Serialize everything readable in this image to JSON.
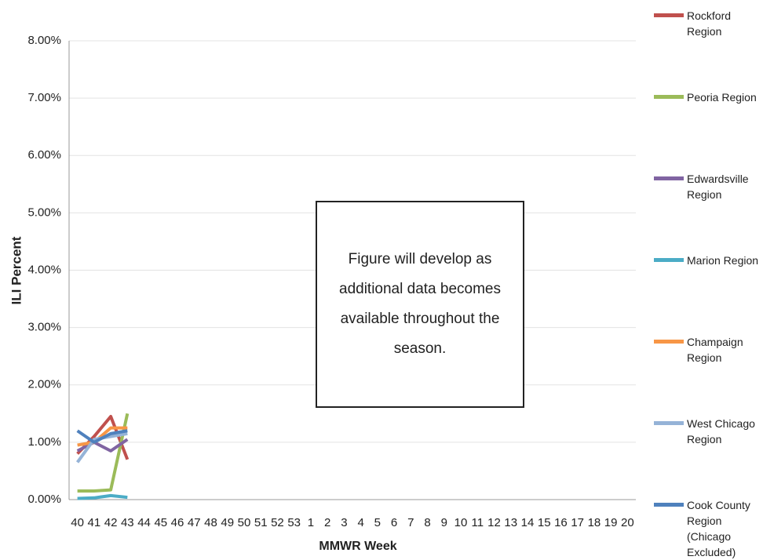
{
  "chart_data": {
    "type": "line",
    "x_label": "MMWR Week",
    "y_label": "ILI Percent",
    "annotation": "Figure will develop as additional data becomes available throughout the season.",
    "categories": [
      "40",
      "41",
      "42",
      "43",
      "44",
      "45",
      "46",
      "47",
      "48",
      "49",
      "50",
      "51",
      "52",
      "53",
      "1",
      "2",
      "3",
      "4",
      "5",
      "6",
      "7",
      "8",
      "9",
      "10",
      "11",
      "12",
      "13",
      "14",
      "15",
      "16",
      "17",
      "18",
      "19",
      "20"
    ],
    "ylim": [
      0,
      8
    ],
    "yticks": [
      {
        "value": 0,
        "label": "0.00%"
      },
      {
        "value": 1,
        "label": "1.00%"
      },
      {
        "value": 2,
        "label": "2.00%"
      },
      {
        "value": 3,
        "label": "3.00%"
      },
      {
        "value": 4,
        "label": "4.00%"
      },
      {
        "value": 5,
        "label": "5.00%"
      },
      {
        "value": 6,
        "label": "6.00%"
      },
      {
        "value": 7,
        "label": "7.00%"
      },
      {
        "value": 8,
        "label": "8.00%"
      }
    ],
    "grid": true,
    "series": [
      {
        "name": "Rockford Region",
        "color": "#c0504d",
        "values": [
          0.8,
          1.1,
          1.45,
          0.7,
          null,
          null,
          null,
          null,
          null,
          null,
          null,
          null,
          null,
          null,
          null,
          null,
          null,
          null,
          null,
          null,
          null,
          null,
          null,
          null,
          null,
          null,
          null,
          null,
          null,
          null,
          null,
          null,
          null,
          null
        ]
      },
      {
        "name": "Peoria Region",
        "color": "#9bbb59",
        "values": [
          0.15,
          0.15,
          0.17,
          1.5,
          null,
          null,
          null,
          null,
          null,
          null,
          null,
          null,
          null,
          null,
          null,
          null,
          null,
          null,
          null,
          null,
          null,
          null,
          null,
          null,
          null,
          null,
          null,
          null,
          null,
          null,
          null,
          null,
          null,
          null
        ]
      },
      {
        "name": "Edwardsville Region",
        "color": "#8064a2",
        "values": [
          0.85,
          1.0,
          0.85,
          1.05,
          null,
          null,
          null,
          null,
          null,
          null,
          null,
          null,
          null,
          null,
          null,
          null,
          null,
          null,
          null,
          null,
          null,
          null,
          null,
          null,
          null,
          null,
          null,
          null,
          null,
          null,
          null,
          null,
          null,
          null
        ]
      },
      {
        "name": "Marion Region",
        "color": "#4bacc6",
        "values": [
          0.02,
          0.03,
          0.07,
          0.04,
          null,
          null,
          null,
          null,
          null,
          null,
          null,
          null,
          null,
          null,
          null,
          null,
          null,
          null,
          null,
          null,
          null,
          null,
          null,
          null,
          null,
          null,
          null,
          null,
          null,
          null,
          null,
          null,
          null,
          null
        ]
      },
      {
        "name": "Champaign Region",
        "color": "#f79646",
        "values": [
          0.95,
          1.0,
          1.25,
          1.25,
          null,
          null,
          null,
          null,
          null,
          null,
          null,
          null,
          null,
          null,
          null,
          null,
          null,
          null,
          null,
          null,
          null,
          null,
          null,
          null,
          null,
          null,
          null,
          null,
          null,
          null,
          null,
          null,
          null,
          null
        ]
      },
      {
        "name": "West Chicago Region",
        "color": "#95b3d7",
        "values": [
          0.65,
          1.05,
          1.1,
          1.15,
          null,
          null,
          null,
          null,
          null,
          null,
          null,
          null,
          null,
          null,
          null,
          null,
          null,
          null,
          null,
          null,
          null,
          null,
          null,
          null,
          null,
          null,
          null,
          null,
          null,
          null,
          null,
          null,
          null,
          null
        ]
      },
      {
        "name": "Cook County Region (Chicago Excluded)",
        "color": "#4f81bd",
        "values": [
          1.2,
          1.0,
          1.15,
          1.2,
          null,
          null,
          null,
          null,
          null,
          null,
          null,
          null,
          null,
          null,
          null,
          null,
          null,
          null,
          null,
          null,
          null,
          null,
          null,
          null,
          null,
          null,
          null,
          null,
          null,
          null,
          null,
          null,
          null,
          null
        ]
      }
    ]
  }
}
